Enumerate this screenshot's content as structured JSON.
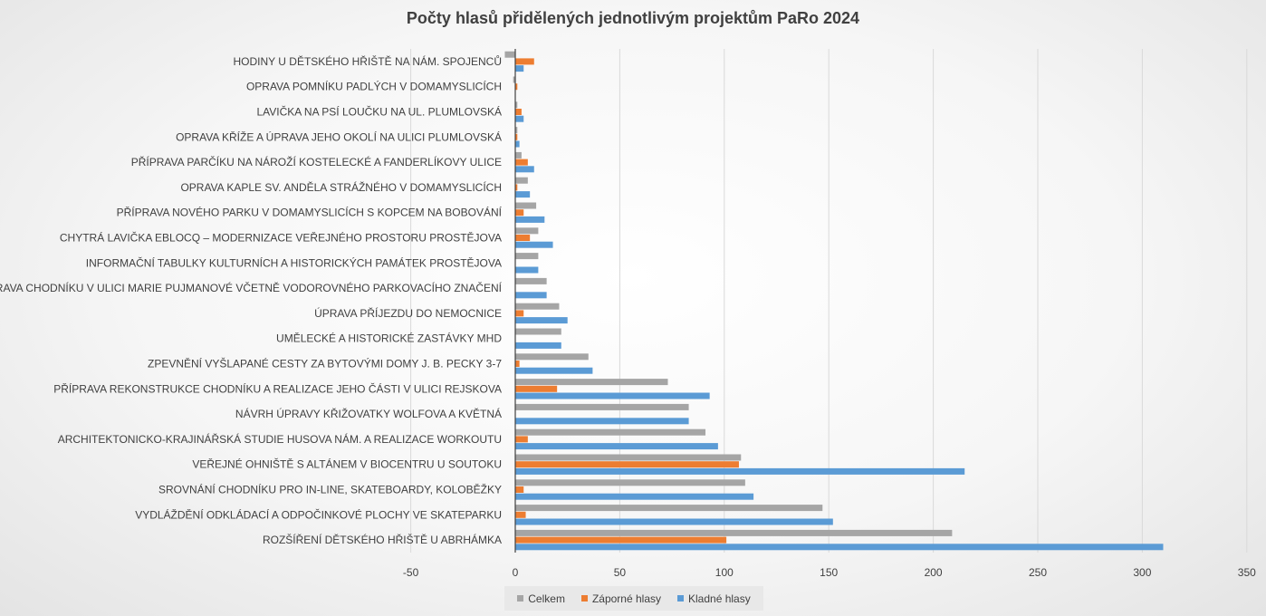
{
  "chart_data": {
    "type": "bar",
    "orientation": "horizontal",
    "title": "Počty hlasů přidělených jednotlivým projektům PaRo 2024",
    "xlabel": "",
    "ylabel": "",
    "xlim": [
      -50,
      350
    ],
    "xticks": [
      "-50",
      "0",
      "50",
      "100",
      "150",
      "200",
      "250",
      "300",
      "350"
    ],
    "grid": "vertical",
    "legend_position": "bottom",
    "colors": {
      "Celkem": "#a5a5a5",
      "Záporné hlasy": "#ed7d31",
      "Kladné  hlasy": "#5b9bd5"
    },
    "categories": [
      "HODINY U DĚTSKÉHO HŘIŠTĚ NA NÁM. SPOJENCŮ",
      "OPRAVA POMNÍKU PADLÝCH V DOMAMYSLICÍCH",
      "LAVIČKA NA PSÍ LOUČKU NA UL. PLUMLOVSKÁ",
      "OPRAVA KŘÍŽE A ÚPRAVA JEHO OKOLÍ NA ULICI PLUMLOVSKÁ",
      "PŘÍPRAVA PARČÍKU NA NÁROŽÍ KOSTELECKÉ A FANDERLÍKOVY ULICE",
      "OPRAVA KAPLE SV. ANDĚLA STRÁŽNÉHO V DOMAMYSLICÍCH",
      "PŘÍPRAVA NOVÉHO PARKU V DOMAMYSLICÍCH S KOPCEM NA BOBOVÁNÍ",
      "CHYTRÁ LAVIČKA EBLOCQ – MODERNIZACE VEŘEJNÉHO PROSTORU PROSTĚJOVA",
      "INFORMAČNÍ TABULKY KULTURNÍCH A HISTORICKÝCH PAMÁTEK PROSTĚJOVA",
      "OPRAVA CHODNÍKU V ULICI MARIE PUJMANOVÉ VČETNĚ VODOROVNÉHO PARKOVACÍHO ZNAČENÍ",
      "ÚPRAVA PŘÍJEZDU DO NEMOCNICE",
      "UMĚLECKÉ A HISTORICKÉ ZASTÁVKY MHD",
      "ZPEVNĚNÍ VYŠLAPANÉ CESTY ZA BYTOVÝMI DOMY J. B. PECKY 3-7",
      "PŘÍPRAVA REKONSTRUKCE CHODNÍKU A REALIZACE JEHO ČÁSTI V ULICI REJSKOVA",
      "NÁVRH ÚPRAVY KŘIŽOVATKY WOLFOVA A KVĚTNÁ",
      "ARCHITEKTONICKO-KRAJINÁŘSKÁ STUDIE HUSOVA NÁM. A REALIZACE WORKOUTU",
      "VEŘEJNÉ OHNIŠTĚ S ALTÁNEM V BIOCENTRU U SOUTOKU",
      "SROVNÁNÍ CHODNÍKU PRO IN-LINE, SKATEBOARDY, KOLOBĚŽKY",
      "VYDLÁŽDĚNÍ ODKLÁDACÍ A ODPOČINKOVÉ PLOCHY VE SKATEPARKU",
      "ROZŠÍŘENÍ DĚTSKÉHO HŘIŠTĚ U ABRHÁMKA"
    ],
    "series": [
      {
        "name": "Celkem",
        "values": [
          -5,
          -1,
          1,
          1,
          3,
          6,
          10,
          11,
          11,
          15,
          21,
          22,
          35,
          73,
          83,
          91,
          108,
          110,
          147,
          209
        ]
      },
      {
        "name": "Záporné hlasy",
        "values": [
          9,
          1,
          3,
          1,
          6,
          1,
          4,
          7,
          0,
          0,
          4,
          0,
          2,
          20,
          0,
          6,
          107,
          4,
          5,
          101
        ]
      },
      {
        "name": "Kladné  hlasy",
        "values": [
          4,
          0,
          4,
          2,
          9,
          7,
          14,
          18,
          11,
          15,
          25,
          22,
          37,
          93,
          83,
          97,
          215,
          114,
          152,
          310
        ]
      }
    ]
  }
}
